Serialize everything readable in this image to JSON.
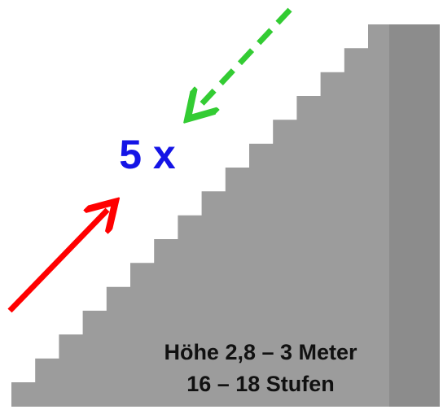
{
  "labels": {
    "repeat": "5 x",
    "height": "Höhe 2,8 – 3 Meter",
    "steps": "16 – 18 Stufen"
  }
}
